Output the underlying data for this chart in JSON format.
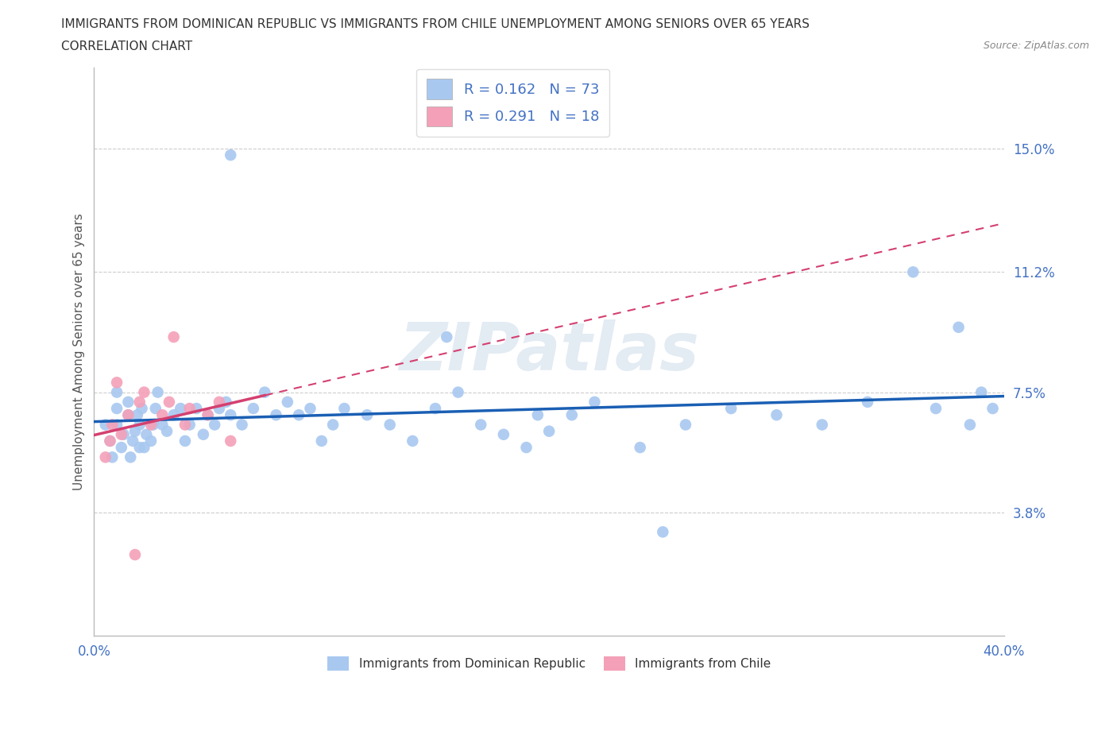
{
  "title_line1": "IMMIGRANTS FROM DOMINICAN REPUBLIC VS IMMIGRANTS FROM CHILE UNEMPLOYMENT AMONG SENIORS OVER 65 YEARS",
  "title_line2": "CORRELATION CHART",
  "source_text": "Source: ZipAtlas.com",
  "ylabel": "Unemployment Among Seniors over 65 years",
  "x_min": 0.0,
  "x_max": 0.4,
  "y_min": 0.0,
  "y_max": 0.175,
  "y_ticks": [
    0.038,
    0.075,
    0.112,
    0.15
  ],
  "y_tick_labels": [
    "3.8%",
    "7.5%",
    "11.2%",
    "15.0%"
  ],
  "r_dominican": 0.162,
  "n_dominican": 73,
  "r_chile": 0.291,
  "n_chile": 18,
  "color_dominican": "#a8c8f0",
  "color_chile": "#f4a0b8",
  "trendline_dominican_color": "#1a5fb4",
  "trendline_chile_color": "#d44070",
  "trendline_ref_color": "#d44070",
  "dominican_x": [
    0.005,
    0.007,
    0.008,
    0.01,
    0.01,
    0.01,
    0.012,
    0.013,
    0.015,
    0.015,
    0.016,
    0.017,
    0.018,
    0.019,
    0.02,
    0.02,
    0.021,
    0.022,
    0.023,
    0.025,
    0.026,
    0.027,
    0.028,
    0.03,
    0.032,
    0.035,
    0.038,
    0.04,
    0.042,
    0.045,
    0.048,
    0.05,
    0.053,
    0.055,
    0.058,
    0.06,
    0.065,
    0.07,
    0.075,
    0.08,
    0.085,
    0.09,
    0.095,
    0.1,
    0.105,
    0.11,
    0.12,
    0.13,
    0.14,
    0.15,
    0.16,
    0.17,
    0.18,
    0.19,
    0.2,
    0.21,
    0.22,
    0.24,
    0.26,
    0.28,
    0.3,
    0.32,
    0.34,
    0.36,
    0.37,
    0.38,
    0.385,
    0.39,
    0.395,
    0.06,
    0.25,
    0.155,
    0.195
  ],
  "dominican_y": [
    0.065,
    0.06,
    0.055,
    0.07,
    0.075,
    0.065,
    0.058,
    0.062,
    0.068,
    0.072,
    0.055,
    0.06,
    0.063,
    0.068,
    0.058,
    0.065,
    0.07,
    0.058,
    0.062,
    0.06,
    0.065,
    0.07,
    0.075,
    0.065,
    0.063,
    0.068,
    0.07,
    0.06,
    0.065,
    0.07,
    0.062,
    0.068,
    0.065,
    0.07,
    0.072,
    0.068,
    0.065,
    0.07,
    0.075,
    0.068,
    0.072,
    0.068,
    0.07,
    0.06,
    0.065,
    0.07,
    0.068,
    0.065,
    0.06,
    0.07,
    0.075,
    0.065,
    0.062,
    0.058,
    0.063,
    0.068,
    0.072,
    0.058,
    0.065,
    0.07,
    0.068,
    0.065,
    0.072,
    0.112,
    0.07,
    0.095,
    0.065,
    0.075,
    0.07,
    0.148,
    0.032,
    0.092,
    0.068
  ],
  "chile_x": [
    0.005,
    0.007,
    0.008,
    0.01,
    0.012,
    0.015,
    0.018,
    0.02,
    0.022,
    0.025,
    0.03,
    0.033,
    0.035,
    0.04,
    0.042,
    0.05,
    0.055,
    0.06
  ],
  "chile_y": [
    0.055,
    0.06,
    0.065,
    0.078,
    0.062,
    0.068,
    0.025,
    0.072,
    0.075,
    0.065,
    0.068,
    0.072,
    0.092,
    0.065,
    0.07,
    0.068,
    0.072,
    0.06
  ]
}
